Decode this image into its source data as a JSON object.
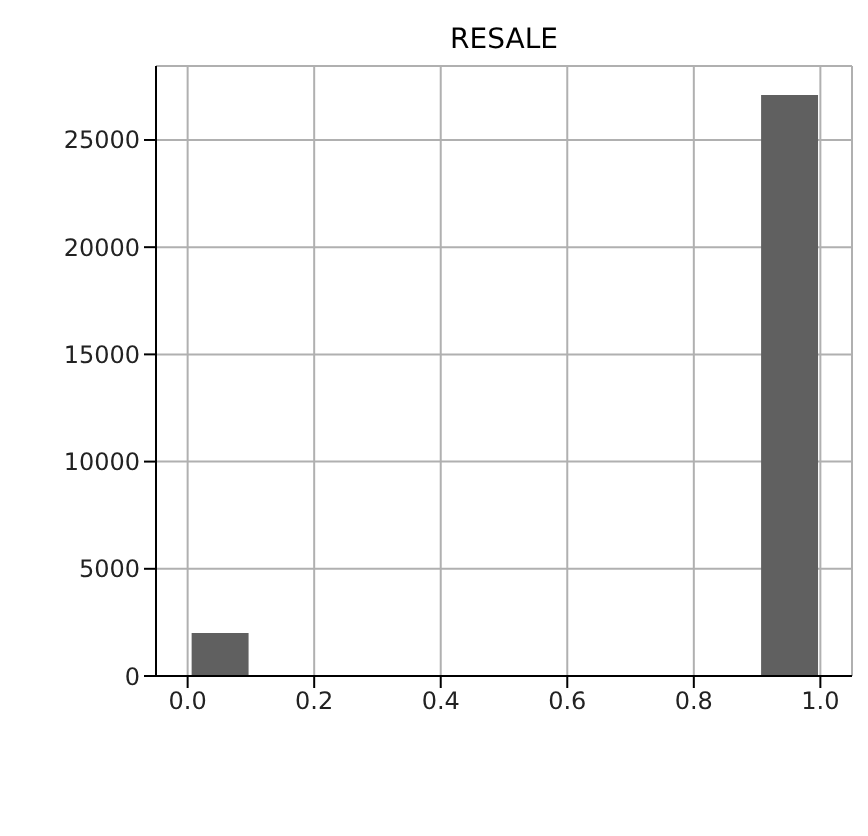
{
  "chart_data": {
    "type": "histogram",
    "title": "RESALE",
    "bins": [
      0,
      0.1,
      0.2,
      0.3,
      0.4,
      0.5,
      0.6,
      0.7,
      0.8,
      0.9,
      1.0
    ],
    "values": [
      2000,
      0,
      0,
      0,
      0,
      0,
      0,
      0,
      0,
      27100
    ],
    "color": "#606060",
    "xlim": [
      -0.05,
      1.05
    ],
    "xticks": [
      {
        "value": 0,
        "label": "0.0"
      },
      {
        "value": 0.2,
        "label": "0.2"
      },
      {
        "value": 0.4,
        "label": "0.4"
      },
      {
        "value": 0.6,
        "label": "0.6"
      },
      {
        "value": 0.8,
        "label": "0.8"
      },
      {
        "value": 1,
        "label": "1.0"
      }
    ],
    "ylim": [
      0,
      28450
    ],
    "yticks": [
      0,
      5000,
      10000,
      15000,
      20000,
      25000
    ],
    "grid": true
  }
}
